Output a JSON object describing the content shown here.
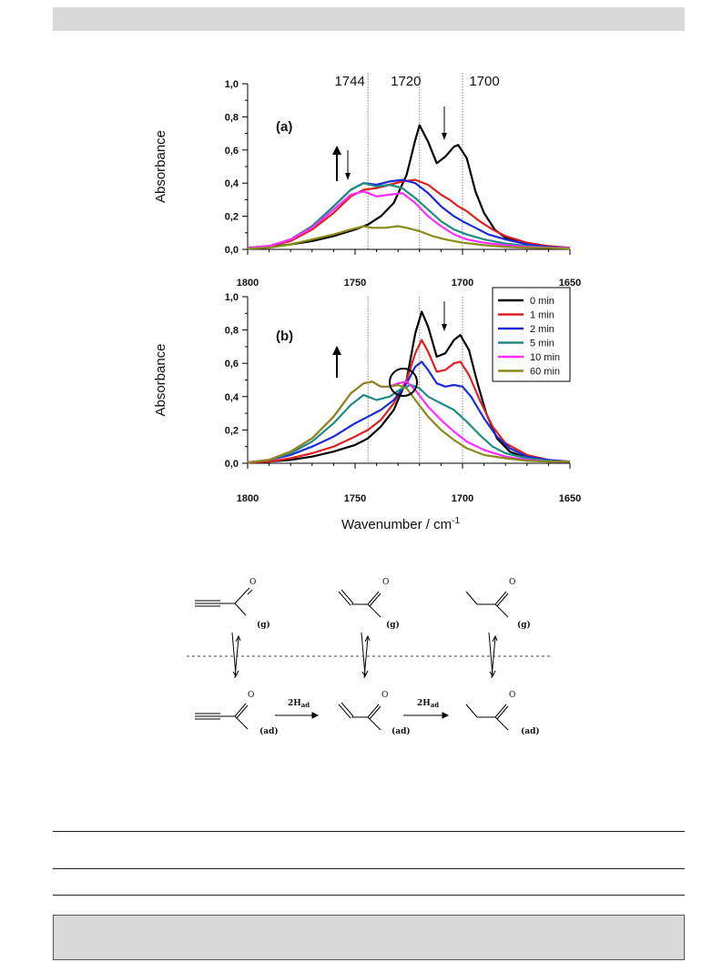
{
  "chart_data": [
    {
      "type": "line",
      "panel_label": "(a)",
      "ylabel": "Absorbance",
      "xlim": [
        1800,
        1650
      ],
      "ylim": [
        0,
        1.0
      ],
      "x_ticks": [
        "1800",
        "1750",
        "1700",
        "1650"
      ],
      "y_ticks": [
        "0,0",
        "0,2",
        "0,4",
        "0,6",
        "0,8",
        "1,0"
      ],
      "reference_lines": [
        {
          "x": 1744,
          "label": "1744"
        },
        {
          "x": 1720,
          "label": "1720"
        },
        {
          "x": 1700,
          "label": "1700"
        }
      ],
      "series": [
        {
          "color": "#000000",
          "x": [
            1800,
            1790,
            1780,
            1770,
            1760,
            1750,
            1744,
            1738,
            1732,
            1726,
            1722,
            1720,
            1716,
            1712,
            1708,
            1704,
            1702,
            1698,
            1694,
            1690,
            1685,
            1680,
            1670,
            1660,
            1650
          ],
          "y": [
            0.01,
            0.015,
            0.03,
            0.05,
            0.08,
            0.12,
            0.15,
            0.2,
            0.28,
            0.45,
            0.66,
            0.75,
            0.65,
            0.52,
            0.56,
            0.62,
            0.63,
            0.55,
            0.35,
            0.22,
            0.12,
            0.07,
            0.03,
            0.015,
            0.01
          ]
        },
        {
          "color": "#e02020",
          "x": [
            1800,
            1790,
            1780,
            1770,
            1760,
            1752,
            1746,
            1740,
            1734,
            1728,
            1722,
            1716,
            1710,
            1706,
            1702,
            1698,
            1692,
            1686,
            1680,
            1670,
            1660,
            1650
          ],
          "y": [
            0.01,
            0.02,
            0.05,
            0.12,
            0.22,
            0.32,
            0.36,
            0.37,
            0.39,
            0.41,
            0.42,
            0.39,
            0.33,
            0.3,
            0.26,
            0.23,
            0.17,
            0.12,
            0.08,
            0.04,
            0.02,
            0.01
          ]
        },
        {
          "color": "#1c2bd8",
          "x": [
            1800,
            1790,
            1780,
            1770,
            1760,
            1752,
            1746,
            1740,
            1734,
            1728,
            1722,
            1716,
            1710,
            1704,
            1700,
            1694,
            1688,
            1680,
            1670,
            1660,
            1650
          ],
          "y": [
            0.01,
            0.02,
            0.06,
            0.14,
            0.26,
            0.36,
            0.4,
            0.39,
            0.41,
            0.42,
            0.4,
            0.34,
            0.26,
            0.2,
            0.17,
            0.13,
            0.09,
            0.06,
            0.03,
            0.015,
            0.01
          ]
        },
        {
          "color": "#1e8c85",
          "x": [
            1800,
            1790,
            1780,
            1770,
            1760,
            1752,
            1746,
            1740,
            1734,
            1728,
            1722,
            1716,
            1710,
            1704,
            1698,
            1690,
            1680,
            1670,
            1660,
            1650
          ],
          "y": [
            0.01,
            0.02,
            0.06,
            0.14,
            0.26,
            0.36,
            0.4,
            0.38,
            0.39,
            0.37,
            0.31,
            0.24,
            0.17,
            0.12,
            0.09,
            0.06,
            0.035,
            0.02,
            0.01,
            0.01
          ]
        },
        {
          "color": "#ff2dff",
          "x": [
            1800,
            1790,
            1780,
            1770,
            1760,
            1752,
            1746,
            1740,
            1734,
            1728,
            1722,
            1716,
            1710,
            1704,
            1698,
            1690,
            1680,
            1670,
            1660,
            1650
          ],
          "y": [
            0.01,
            0.02,
            0.06,
            0.13,
            0.24,
            0.33,
            0.35,
            0.32,
            0.33,
            0.34,
            0.28,
            0.2,
            0.14,
            0.09,
            0.06,
            0.04,
            0.025,
            0.015,
            0.01,
            0.01
          ]
        },
        {
          "color": "#8a8a18",
          "x": [
            1800,
            1790,
            1780,
            1770,
            1760,
            1752,
            1746,
            1742,
            1736,
            1730,
            1726,
            1720,
            1714,
            1708,
            1700,
            1690,
            1680,
            1670,
            1660,
            1650
          ],
          "y": [
            0.005,
            0.01,
            0.03,
            0.06,
            0.09,
            0.12,
            0.14,
            0.13,
            0.13,
            0.14,
            0.13,
            0.11,
            0.08,
            0.06,
            0.04,
            0.025,
            0.015,
            0.01,
            0.008,
            0.005
          ]
        }
      ]
    },
    {
      "type": "line",
      "panel_label": "(b)",
      "ylabel": "Absorbance",
      "xlabel": "Wavenumber / cm",
      "xlabel_sup": "-1",
      "xlim": [
        1800,
        1650
      ],
      "ylim": [
        0,
        1.0
      ],
      "x_ticks": [
        "1800",
        "1750",
        "1700",
        "1650"
      ],
      "y_ticks": [
        "0,0",
        "0,2",
        "0,4",
        "0,6",
        "0,8",
        "1,0"
      ],
      "reference_lines": [
        {
          "x": 1744
        },
        {
          "x": 1720
        },
        {
          "x": 1700
        }
      ],
      "legend": {
        "position": "top-right"
      },
      "series": [
        {
          "name": "0 min",
          "color": "#000000",
          "x": [
            1800,
            1790,
            1780,
            1770,
            1760,
            1750,
            1744,
            1738,
            1732,
            1726,
            1722,
            1719,
            1716,
            1712,
            1708,
            1704,
            1701,
            1697,
            1693,
            1689,
            1684,
            1678,
            1670,
            1660,
            1650
          ],
          "y": [
            0.005,
            0.01,
            0.02,
            0.04,
            0.07,
            0.11,
            0.15,
            0.22,
            0.32,
            0.5,
            0.78,
            0.91,
            0.82,
            0.64,
            0.66,
            0.74,
            0.77,
            0.68,
            0.48,
            0.3,
            0.15,
            0.07,
            0.03,
            0.015,
            0.01
          ]
        },
        {
          "name": "1 min",
          "color": "#e02020",
          "x": [
            1800,
            1790,
            1780,
            1770,
            1760,
            1750,
            1744,
            1738,
            1732,
            1726,
            1722,
            1719,
            1716,
            1712,
            1708,
            1704,
            1701,
            1697,
            1692,
            1686,
            1680,
            1670,
            1660,
            1650
          ],
          "y": [
            0.005,
            0.01,
            0.03,
            0.06,
            0.1,
            0.16,
            0.2,
            0.26,
            0.36,
            0.5,
            0.66,
            0.74,
            0.67,
            0.55,
            0.56,
            0.6,
            0.61,
            0.53,
            0.38,
            0.22,
            0.12,
            0.05,
            0.02,
            0.01
          ]
        },
        {
          "name": "2 min",
          "color": "#1c2bd8",
          "x": [
            1800,
            1790,
            1780,
            1770,
            1760,
            1750,
            1744,
            1738,
            1732,
            1726,
            1722,
            1719,
            1716,
            1712,
            1708,
            1704,
            1700,
            1696,
            1690,
            1684,
            1678,
            1670,
            1660,
            1650
          ],
          "y": [
            0.005,
            0.02,
            0.05,
            0.1,
            0.16,
            0.24,
            0.28,
            0.32,
            0.38,
            0.48,
            0.58,
            0.61,
            0.56,
            0.48,
            0.46,
            0.47,
            0.46,
            0.4,
            0.27,
            0.16,
            0.09,
            0.04,
            0.02,
            0.01
          ]
        },
        {
          "name": "5 min",
          "color": "#1e8c85",
          "x": [
            1800,
            1790,
            1780,
            1770,
            1760,
            1752,
            1746,
            1740,
            1734,
            1728,
            1724,
            1720,
            1716,
            1710,
            1704,
            1698,
            1692,
            1686,
            1680,
            1670,
            1660,
            1650
          ],
          "y": [
            0.005,
            0.02,
            0.06,
            0.13,
            0.24,
            0.35,
            0.41,
            0.38,
            0.4,
            0.45,
            0.47,
            0.45,
            0.4,
            0.36,
            0.32,
            0.25,
            0.17,
            0.1,
            0.06,
            0.03,
            0.015,
            0.01
          ]
        },
        {
          "name": "10 min",
          "color": "#ff2dff",
          "x": [
            1800,
            1790,
            1780,
            1770,
            1760,
            1752,
            1746,
            1742,
            1738,
            1734,
            1730,
            1726,
            1722,
            1716,
            1710,
            1704,
            1698,
            1690,
            1680,
            1670,
            1660,
            1650
          ],
          "y": [
            0.005,
            0.02,
            0.07,
            0.15,
            0.28,
            0.42,
            0.48,
            0.49,
            0.46,
            0.46,
            0.48,
            0.49,
            0.44,
            0.34,
            0.26,
            0.19,
            0.13,
            0.08,
            0.04,
            0.02,
            0.01,
            0.01
          ]
        },
        {
          "name": "60 min",
          "color": "#8a8a18",
          "x": [
            1800,
            1790,
            1780,
            1770,
            1760,
            1752,
            1746,
            1742,
            1738,
            1734,
            1730,
            1726,
            1722,
            1716,
            1710,
            1704,
            1698,
            1690,
            1680,
            1670,
            1660,
            1650
          ],
          "y": [
            0.005,
            0.02,
            0.07,
            0.15,
            0.28,
            0.42,
            0.48,
            0.49,
            0.46,
            0.46,
            0.47,
            0.45,
            0.38,
            0.28,
            0.2,
            0.14,
            0.09,
            0.05,
            0.03,
            0.015,
            0.01,
            0.01
          ]
        }
      ]
    }
  ],
  "scheme": {
    "atom_o": "O",
    "gas_label": "(g)",
    "ad_label": "(ad)",
    "step_label_main": "2H",
    "step_label_sub": "ad"
  }
}
